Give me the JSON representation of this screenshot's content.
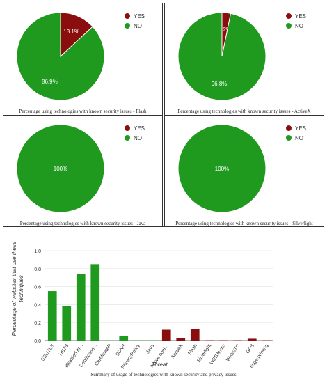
{
  "colors": {
    "yes": "#8b0e0e",
    "no": "#1f9a1f",
    "grid": "#e0e0e0",
    "axis": "#444444"
  },
  "chart_data": [
    {
      "type": "pie",
      "title": "Percentage using technologies with known security issues - Flash",
      "slices": [
        {
          "name": "YES",
          "value": 13.1,
          "label": "13.1%"
        },
        {
          "name": "NO",
          "value": 86.9,
          "label": "86.9%"
        }
      ],
      "legend": "top-right"
    },
    {
      "type": "pie",
      "title": "Percentage using technologies with known security issues - ActiveX",
      "slices": [
        {
          "name": "YES",
          "value": 3.2,
          "label": "3.2%"
        },
        {
          "name": "NO",
          "value": 96.8,
          "label": "96.8%"
        }
      ],
      "legend": "top-right"
    },
    {
      "type": "pie",
      "title": "Percentage using technologies with known security issues - Java",
      "slices": [
        {
          "name": "YES",
          "value": 0,
          "label": ""
        },
        {
          "name": "NO",
          "value": 100,
          "label": "100%"
        }
      ],
      "legend": "top-right"
    },
    {
      "type": "pie",
      "title": "Percentage using technologies with known security issues - Silverlight",
      "slices": [
        {
          "name": "YES",
          "value": 0,
          "label": ""
        },
        {
          "name": "NO",
          "value": 100,
          "label": "100%"
        }
      ],
      "legend": "top-right"
    },
    {
      "type": "bar",
      "title": "Summary of usage of technologies with known security and privacy issues",
      "xlabel": "Threat",
      "ylabel": "Percentage of websites that use these techniques",
      "ylim": [
        0,
        1.0
      ],
      "yticks": [
        "0.0",
        "0.2",
        "0.4",
        "0.6",
        "0.8",
        "1.0"
      ],
      "grid": true,
      "categories": [
        "SSL/TLS",
        "HSTS",
        "disabled in...",
        "Certificatio...",
        "CertificateP",
        "SDNS",
        "PrivacyPolicy",
        "Java",
        "Active cont...",
        "ActiveX",
        "Flash",
        "Silverlight",
        "WEBAudio",
        "WebRTC",
        "GPS",
        "fingerprinting"
      ],
      "values": [
        0.55,
        0.38,
        0.74,
        0.85,
        0.0,
        0.05,
        0.0,
        0.0,
        0.12,
        0.03,
        0.13,
        0.0,
        0.0,
        0.0,
        0.02,
        0.0
      ],
      "bar_colors": [
        "no",
        "no",
        "no",
        "no",
        "no",
        "no",
        "no",
        "no",
        "yes",
        "yes",
        "yes",
        "yes",
        "yes",
        "yes",
        "yes",
        "yes"
      ]
    }
  ]
}
